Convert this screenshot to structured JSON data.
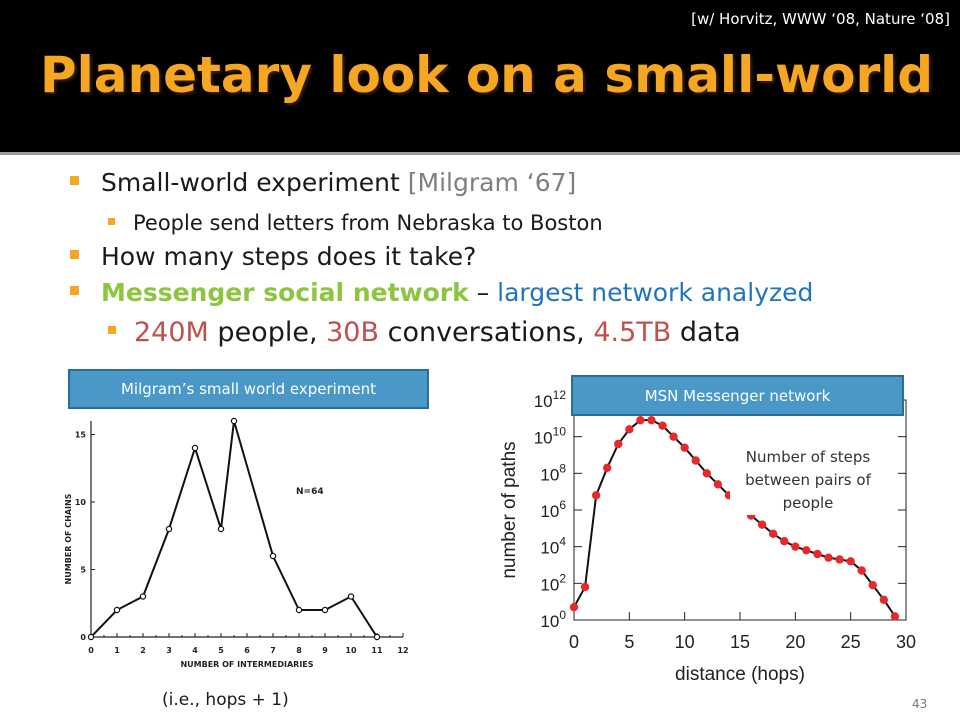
{
  "slide": {
    "citation": "[w/ Horvitz, WWW ‘08, Nature ‘08]",
    "title": "Planetary look on a small-world",
    "page_number": "43"
  },
  "bullets": {
    "b1": {
      "text": "Small-world experiment ",
      "ref": "[Milgram ‘67]"
    },
    "b1_sub": "People send letters from Nebraska to Boston",
    "b2": "How many steps does it take?",
    "b3": {
      "highlight": "Messenger social network",
      "dash": " – ",
      "rest": "largest network analyzed"
    },
    "b3_sub": {
      "n1": "240M",
      "t1": " people, ",
      "n2": "30B",
      "t2": " conversations, ",
      "n3": "4.5TB",
      "t3": " data"
    }
  },
  "panels": {
    "milgram_label": "Milgram’s small world experiment",
    "msn_label": "MSN Messenger network",
    "steps_note": "Number of steps between pairs of people",
    "hops_note": "(i.e., hops + 1)"
  },
  "chart_data": [
    {
      "type": "line",
      "xlabel": "NUMBER OF INTERMEDIARIES",
      "ylabel": "NUMBER OF CHAINS",
      "annotation": "N=64",
      "xlim": [
        0,
        12
      ],
      "ylim": [
        0,
        16
      ],
      "xticks": [
        "0",
        "1",
        "2",
        "3",
        "4",
        "5",
        "6",
        "7",
        "8",
        "9",
        "10",
        "11",
        "12"
      ],
      "yticks": [
        "0",
        "5",
        "10",
        "15"
      ],
      "x": [
        0,
        1,
        2,
        3,
        4,
        5,
        5.5,
        7,
        8,
        9,
        10,
        11
      ],
      "y": [
        0,
        2,
        3,
        8,
        14,
        8,
        16,
        6,
        2,
        2,
        3,
        0
      ]
    },
    {
      "type": "line",
      "xlabel": "distance (hops)",
      "ylabel": "number of paths",
      "yscale": "log",
      "xlim": [
        0,
        30
      ],
      "ylim_exp": [
        0,
        12
      ],
      "xticks": [
        "0",
        "5",
        "10",
        "15",
        "20",
        "25",
        "30"
      ],
      "yticks": [
        "10^0",
        "10^2",
        "10^4",
        "10^6",
        "10^8",
        "10^10",
        "10^12"
      ],
      "point_color": "#e8282b",
      "x": [
        0,
        1,
        2,
        3,
        4,
        5,
        6,
        7,
        8,
        9,
        10,
        11,
        12,
        13,
        14,
        15,
        16,
        17,
        18,
        19,
        20,
        21,
        22,
        23,
        24,
        25,
        26,
        27,
        28,
        29
      ],
      "log10_y": [
        0.7,
        1.8,
        6.8,
        8.3,
        9.6,
        10.4,
        10.9,
        10.9,
        10.6,
        10.0,
        9.4,
        8.7,
        8.0,
        7.4,
        6.8,
        6.2,
        5.7,
        5.2,
        4.7,
        4.3,
        4.0,
        3.8,
        3.6,
        3.4,
        3.3,
        3.2,
        2.7,
        1.9,
        1.1,
        0.2
      ]
    }
  ]
}
